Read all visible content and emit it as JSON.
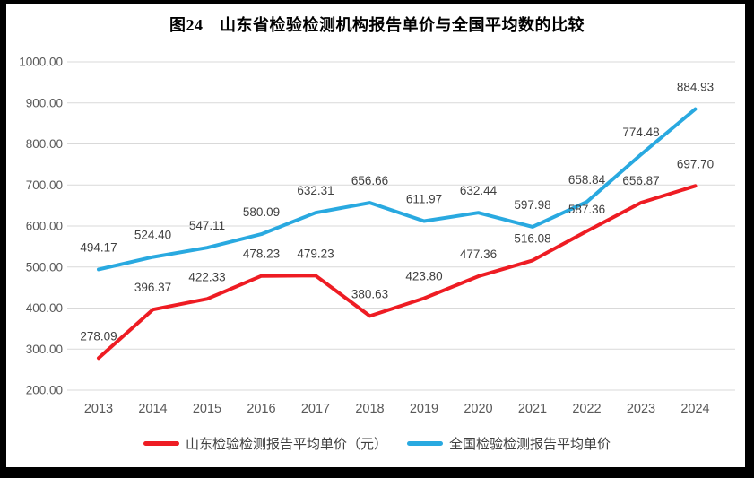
{
  "title": "图24　山东省检验检测机构报告单价与全国平均数的比较",
  "chart_data": {
    "type": "line",
    "title": "图24　山东省检验检测机构报告单价与全国平均数的比较",
    "x_labels": [
      "2013",
      "2014",
      "2015",
      "2016",
      "2017",
      "2018",
      "2019",
      "2020",
      "2021",
      "2022",
      "2023",
      "2024"
    ],
    "series": [
      {
        "name": "山东检验检测报告平均单价（元）",
        "color": "#ee1c23",
        "values": [
          278.09,
          396.37,
          422.33,
          478.23,
          479.23,
          380.63,
          423.8,
          477.36,
          516.08,
          587.36,
          656.87,
          697.7
        ]
      },
      {
        "name": "全国检验检测报告平均单价",
        "color": "#29a9e0",
        "values": [
          494.17,
          524.4,
          547.11,
          580.09,
          632.31,
          656.66,
          611.97,
          632.44,
          597.98,
          658.84,
          774.48,
          884.93
        ]
      }
    ],
    "ylim": [
      200,
      1000
    ],
    "ytick_step": 100,
    "ytick_labels": [
      "200.00",
      "300.00",
      "400.00",
      "500.00",
      "600.00",
      "700.00",
      "800.00",
      "900.00",
      "1000.00"
    ],
    "data_labels": "all points, two decimals, above each point",
    "grid": "horizontal only",
    "legend_position": "bottom",
    "colors": {
      "grid": "#d9d9d9",
      "tick_label": "#595959",
      "data_label": "#404040",
      "background": "#ffffff",
      "frame_border": "#000000"
    }
  }
}
